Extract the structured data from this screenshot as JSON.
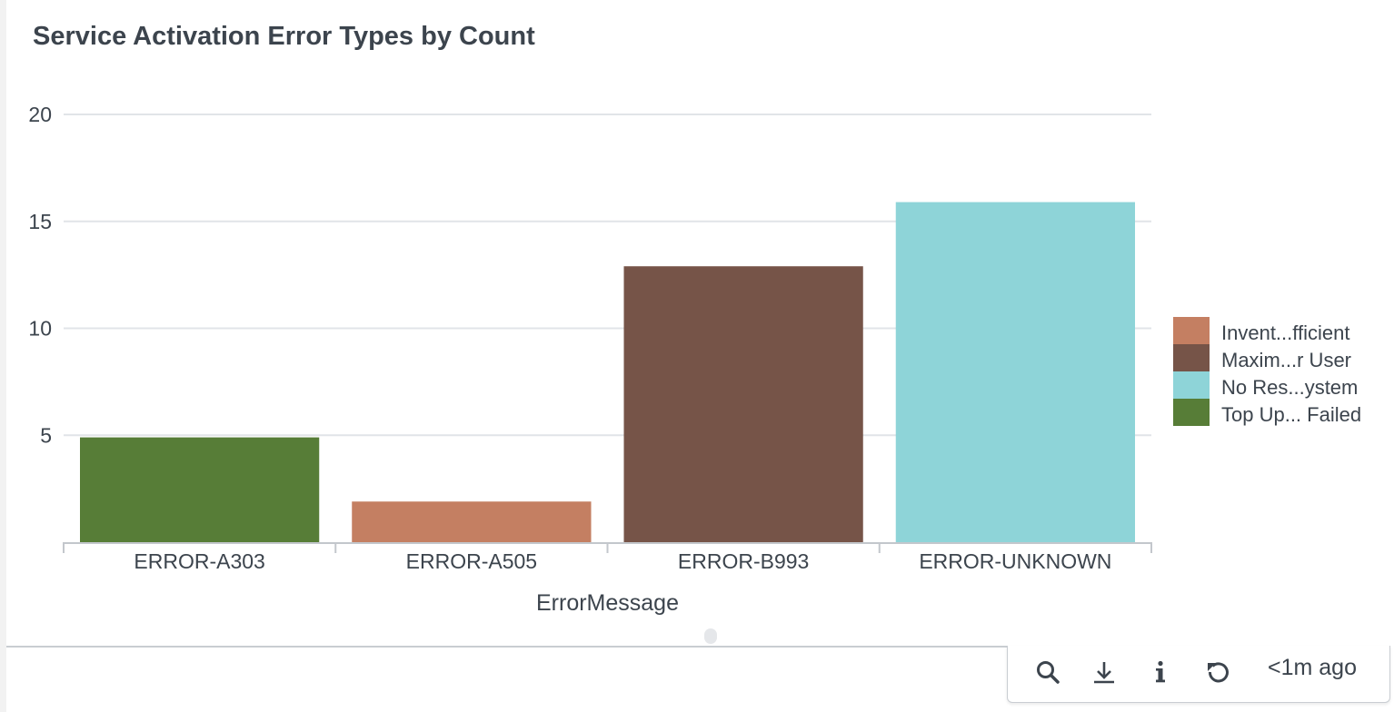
{
  "panel": {
    "title": "Service Activation Error Types by Count"
  },
  "chart_data": {
    "type": "bar",
    "title": "Service Activation Error Types by Count",
    "xlabel": "ErrorMessage",
    "ylabel": "",
    "ylim": [
      0,
      20
    ],
    "yticks": [
      5,
      10,
      15,
      20
    ],
    "grid": true,
    "legend_position": "right",
    "categories": [
      "ERROR-A303",
      "ERROR-A505",
      "ERROR-B993",
      "ERROR-UNKNOWN"
    ],
    "values": [
      4.9,
      1.9,
      12.9,
      15.9
    ],
    "bar_series": [
      "Top Up... Failed",
      "Invent...fficient",
      "Maxim...r User",
      "No Res...ystem"
    ],
    "colors": [
      "#577d37",
      "#c47f62",
      "#765448",
      "#8ed4d8"
    ],
    "legend": [
      {
        "label": "Invent...fficient",
        "color": "#c47f62"
      },
      {
        "label": "Maxim...r User",
        "color": "#765448"
      },
      {
        "label": "No Res...ystem",
        "color": "#8ed4d8"
      },
      {
        "label": "Top Up... Failed",
        "color": "#577d37"
      }
    ]
  },
  "toolbar": {
    "search_icon": "magnifier-icon",
    "download_icon": "download-icon",
    "info_icon": "info-icon",
    "refresh_icon": "refresh-icon",
    "updated_label": "<1m ago"
  },
  "colors": {
    "text": "#3c444d",
    "grid": "#e1e4e8",
    "axis": "#c3c7cc",
    "icon": "#3c444d"
  }
}
